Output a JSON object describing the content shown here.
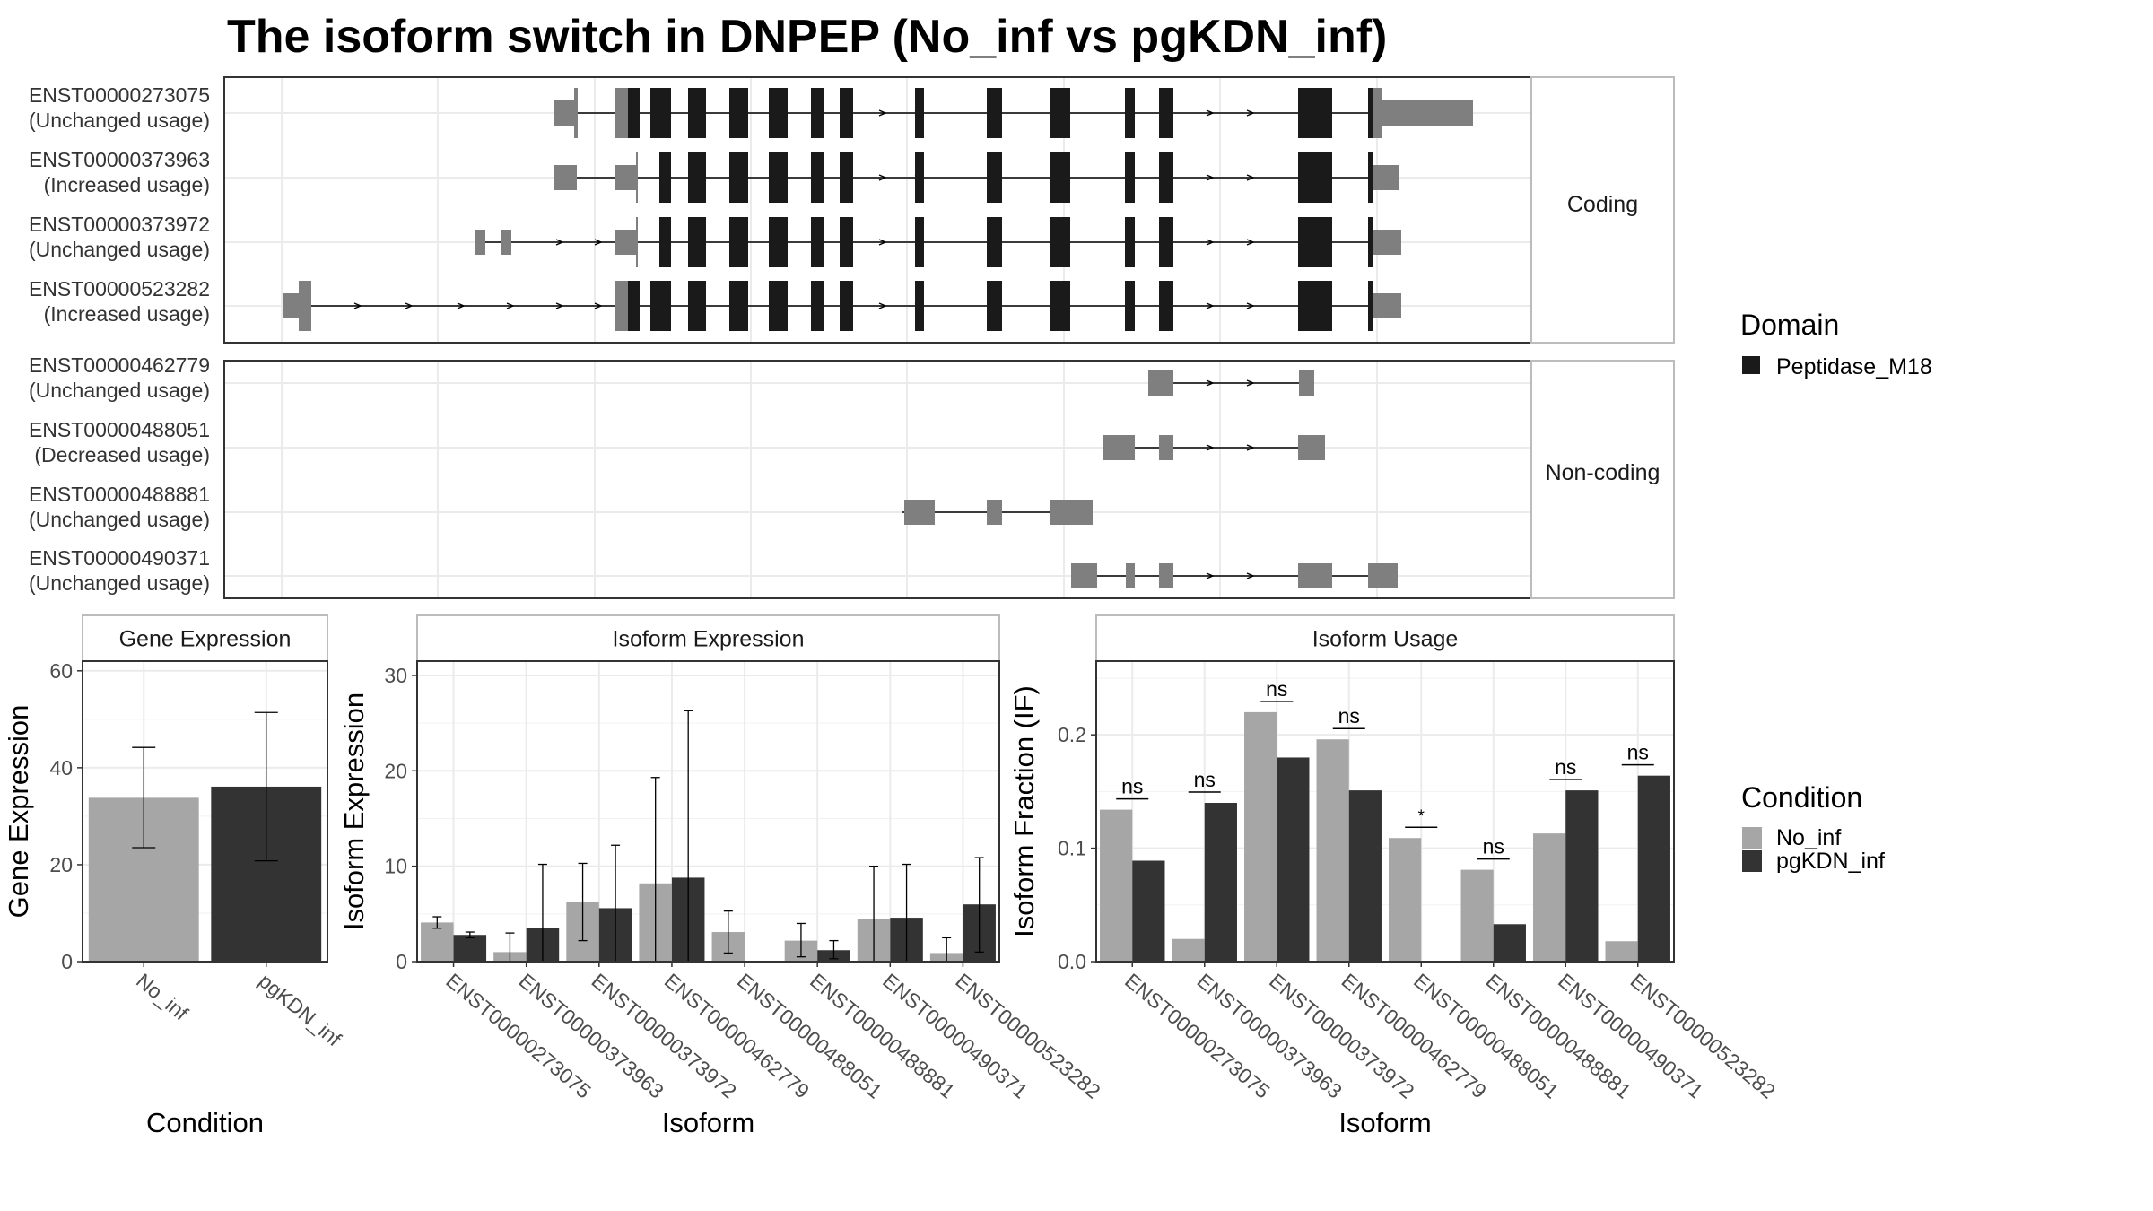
{
  "title": "The isoform switch in DNPEP (No_inf vs pgKDN_inf)",
  "colors": {
    "domain": "#1a1a1a",
    "utr": "#7f7f7f",
    "no_inf": "#a6a6a6",
    "pgkdn_inf": "#333333",
    "strip_bg": "#ffffff",
    "grid": "#ebebeb",
    "panel_border": "#333333"
  },
  "chart_data": [
    {
      "type": "gene-structure",
      "panels": [
        {
          "strip": "Coding",
          "isoforms": [
            {
              "id": "ENST00000273075",
              "usage": "(Unchanged usage)"
            },
            {
              "id": "ENST00000373963",
              "usage": "(Increased usage)"
            },
            {
              "id": "ENST00000373972",
              "usage": "(Unchanged usage)"
            },
            {
              "id": "ENST00000523282",
              "usage": "(Increased usage)"
            }
          ]
        },
        {
          "strip": "Non-coding",
          "isoforms": [
            {
              "id": "ENST00000462779",
              "usage": "(Unchanged usage)"
            },
            {
              "id": "ENST00000488051",
              "usage": "(Decreased usage)"
            },
            {
              "id": "ENST00000488881",
              "usage": "(Unchanged usage)"
            },
            {
              "id": "ENST00000490371",
              "usage": "(Unchanged usage)"
            }
          ]
        }
      ],
      "legend": {
        "title": "Domain",
        "items": [
          {
            "label": "Peptidase_M18",
            "color": "#1a1a1a"
          }
        ]
      }
    },
    {
      "type": "bar",
      "strip": "Gene Expression",
      "xlabel": "Condition",
      "ylabel": "Gene Expression",
      "ylim": [
        0,
        62
      ],
      "yticks": [
        0,
        20,
        40,
        60
      ],
      "categories": [
        "No_inf",
        "pgKDN_inf"
      ],
      "values": [
        33.8,
        36.1
      ],
      "error": [
        [
          23.5,
          44.2
        ],
        [
          20.8,
          51.4
        ]
      ]
    },
    {
      "type": "bar",
      "strip": "Isoform Expression",
      "xlabel": "Isoform",
      "ylabel": "Isoform Expression",
      "ylim": [
        0,
        31.5
      ],
      "yticks": [
        0,
        10,
        20,
        30
      ],
      "categories": [
        "ENST00000273075",
        "ENST00000373963",
        "ENST00000373972",
        "ENST00000462779",
        "ENST00000488051",
        "ENST00000488881",
        "ENST00000490371",
        "ENST00000523282"
      ],
      "series": [
        {
          "name": "No_inf",
          "values": [
            4.1,
            1.0,
            6.3,
            8.2,
            3.1,
            2.2,
            4.5,
            0.9
          ],
          "error": [
            [
              3.5,
              4.7
            ],
            [
              0.0,
              3.0
            ],
            [
              2.2,
              10.3
            ],
            [
              0.0,
              19.3
            ],
            [
              0.9,
              5.3
            ],
            [
              0.5,
              4.0
            ],
            [
              0.0,
              10.0
            ],
            [
              0.0,
              2.5
            ]
          ]
        },
        {
          "name": "pgKDN_inf",
          "values": [
            2.8,
            3.5,
            5.6,
            8.8,
            0.0,
            1.2,
            4.6,
            6.0
          ],
          "error": [
            [
              2.5,
              3.1
            ],
            [
              0.0,
              10.2
            ],
            [
              0.0,
              12.2
            ],
            [
              0.0,
              26.3
            ],
            [
              0.0,
              0.0
            ],
            [
              0.3,
              2.2
            ],
            [
              0.0,
              10.2
            ],
            [
              1.0,
              10.9
            ]
          ]
        }
      ]
    },
    {
      "type": "bar",
      "strip": "Isoform Usage",
      "xlabel": "Isoform",
      "ylabel": "Isoform Fraction (IF)",
      "ylim": [
        0,
        0.265
      ],
      "yticks": [
        0.0,
        0.1,
        0.2
      ],
      "ytick_labels": [
        "0.0",
        "0.1",
        "0.2"
      ],
      "categories": [
        "ENST00000273075",
        "ENST00000373963",
        "ENST00000373972",
        "ENST00000462779",
        "ENST00000488051",
        "ENST00000488881",
        "ENST00000490371",
        "ENST00000523282"
      ],
      "series": [
        {
          "name": "No_inf",
          "values": [
            0.134,
            0.02,
            0.22,
            0.196,
            0.109,
            0.081,
            0.113,
            0.018
          ]
        },
        {
          "name": "pgKDN_inf",
          "values": [
            0.089,
            0.14,
            0.18,
            0.151,
            0.0,
            0.033,
            0.151,
            0.164
          ]
        }
      ],
      "significance": [
        "ns",
        "ns",
        "ns",
        "ns",
        "*",
        "ns",
        "ns",
        "ns"
      ]
    }
  ],
  "legend_condition": {
    "title": "Condition",
    "items": [
      {
        "label": "No_inf",
        "color": "#a6a6a6"
      },
      {
        "label": "pgKDN_inf",
        "color": "#333333"
      }
    ]
  }
}
